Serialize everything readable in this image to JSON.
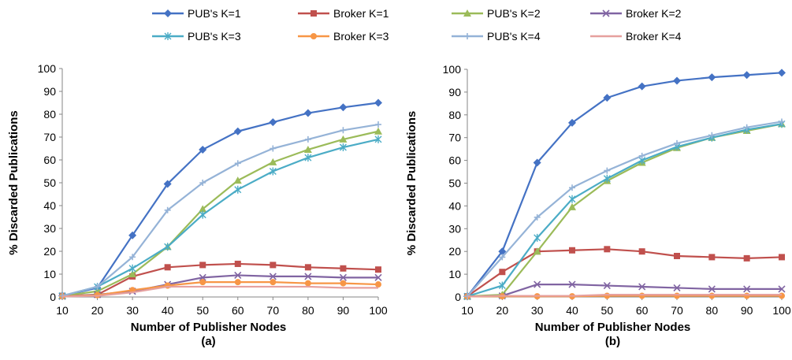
{
  "legend": [
    {
      "label": "PUB's K=1",
      "color": "#4472C4",
      "marker": "diamond"
    },
    {
      "label": "Broker K=1",
      "color": "#C0504D",
      "marker": "square"
    },
    {
      "label": "PUB's K=2",
      "color": "#9BBB59",
      "marker": "triangle"
    },
    {
      "label": "Broker K=2",
      "color": "#8064A2",
      "marker": "x"
    },
    {
      "label": "PUB's K=3",
      "color": "#4BACC6",
      "marker": "star"
    },
    {
      "label": "Broker K=3",
      "color": "#F79646",
      "marker": "circle"
    },
    {
      "label": "PUB's K=4",
      "color": "#95B3D7",
      "marker": "plus"
    },
    {
      "label": "Broker K=4",
      "color": "#E6A09E",
      "marker": "none"
    }
  ],
  "chart_data": [
    {
      "type": "line",
      "panel_label": "(a)",
      "xlabel": "Number of Publisher Nodes",
      "ylabel": "% Discarded Publications",
      "x": [
        10,
        20,
        30,
        40,
        50,
        60,
        70,
        80,
        90,
        100
      ],
      "xticks": [
        "10",
        "20",
        "30",
        "40",
        "50",
        "60",
        "70",
        "80",
        "90",
        "100"
      ],
      "ylim": [
        0,
        100
      ],
      "yticks": [
        "0",
        "10",
        "20",
        "30",
        "40",
        "50",
        "60",
        "70",
        "80",
        "90",
        "100"
      ],
      "grid": false,
      "legend_position": "top",
      "series": [
        {
          "name": "PUB's K=1",
          "values": [
            0.5,
            4,
            27,
            49.5,
            64.5,
            72.5,
            76.5,
            80.5,
            83,
            85
          ]
        },
        {
          "name": "Broker K=1",
          "values": [
            0.5,
            1,
            9,
            13,
            14,
            14.5,
            14,
            13,
            12.5,
            12
          ]
        },
        {
          "name": "PUB's K=2",
          "values": [
            0.5,
            2.5,
            10,
            22,
            38.5,
            51,
            59,
            64.5,
            69,
            72.5
          ]
        },
        {
          "name": "Broker K=2",
          "values": [
            0.3,
            1,
            2.5,
            5.5,
            8.5,
            9.5,
            9,
            9,
            8.5,
            8.5
          ]
        },
        {
          "name": "PUB's K=3",
          "values": [
            0.5,
            4.5,
            12.5,
            22,
            36,
            47,
            55,
            61,
            65.5,
            69
          ]
        },
        {
          "name": "Broker K=3",
          "values": [
            0.3,
            0.8,
            3,
            5,
            6.5,
            6.5,
            6.5,
            6,
            6,
            5.5
          ]
        },
        {
          "name": "PUB's K=4",
          "values": [
            0.5,
            4.5,
            17.5,
            38,
            50,
            58.5,
            65,
            69,
            73,
            75.5
          ]
        },
        {
          "name": "Broker K=4",
          "values": [
            0.2,
            0.5,
            2,
            4.5,
            4.5,
            4.5,
            4.5,
            4.5,
            4,
            4
          ]
        }
      ]
    },
    {
      "type": "line",
      "panel_label": "(b)",
      "xlabel": "Number of Publisher Nodes",
      "ylabel": "% Discarded Publications",
      "x": [
        10,
        20,
        30,
        40,
        50,
        60,
        70,
        80,
        90,
        100
      ],
      "xticks": [
        "10",
        "20",
        "30",
        "40",
        "50",
        "60",
        "70",
        "80",
        "90",
        "100"
      ],
      "ylim": [
        0,
        100
      ],
      "yticks": [
        "0",
        "10",
        "20",
        "30",
        "40",
        "50",
        "60",
        "70",
        "80",
        "90",
        "100"
      ],
      "grid": false,
      "legend_position": "top",
      "series": [
        {
          "name": "PUB's K=1",
          "values": [
            0.3,
            20,
            59,
            76.5,
            87.5,
            92.5,
            95,
            96.5,
            97.5,
            98.5
          ]
        },
        {
          "name": "Broker K=1",
          "values": [
            0.3,
            11,
            20,
            20.5,
            21,
            20,
            18,
            17.5,
            17,
            17.5
          ]
        },
        {
          "name": "PUB's K=2",
          "values": [
            0.3,
            1,
            20,
            39.5,
            51,
            59,
            65.5,
            70,
            73,
            76
          ]
        },
        {
          "name": "Broker K=2",
          "values": [
            0.2,
            0.5,
            5.5,
            5.5,
            5,
            4.5,
            4,
            3.5,
            3.5,
            3.5
          ]
        },
        {
          "name": "PUB's K=3",
          "values": [
            0.3,
            5,
            26,
            43,
            52,
            60,
            66,
            70,
            73.5,
            76
          ]
        },
        {
          "name": "Broker K=3",
          "values": [
            0.2,
            0.3,
            0.3,
            0.3,
            0.5,
            0.5,
            0.5,
            0.5,
            0.5,
            0.5
          ]
        },
        {
          "name": "PUB's K=4",
          "values": [
            0.3,
            17.5,
            35,
            48,
            55.5,
            62,
            67.5,
            71,
            74.5,
            77
          ]
        },
        {
          "name": "Broker K=4",
          "values": [
            0.2,
            0.5,
            0.5,
            0.5,
            1,
            1,
            1,
            1,
            1,
            1
          ]
        }
      ]
    }
  ]
}
